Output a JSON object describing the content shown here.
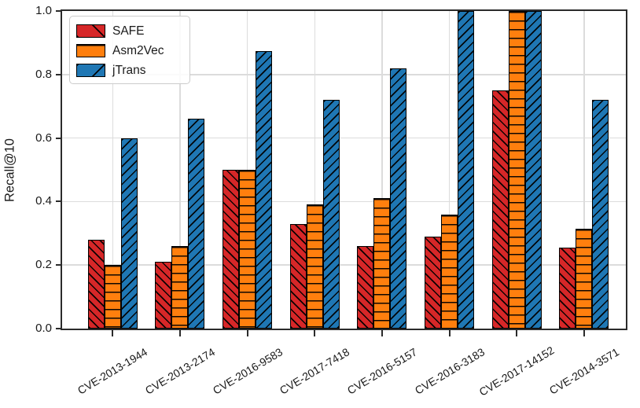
{
  "chart_data": {
    "type": "bar",
    "title": "",
    "xlabel": "",
    "ylabel": "Recall@10",
    "ylim": [
      0.0,
      1.0
    ],
    "yticks": [
      0.0,
      0.2,
      0.4,
      0.6,
      0.8,
      1.0
    ],
    "ytick_labels": [
      "0.0",
      "0.2",
      "0.4",
      "0.6",
      "0.8",
      "1.0"
    ],
    "grid": true,
    "legend_position": "upper left",
    "categories": [
      "CVE-2013-1944",
      "CVE-2013-2174",
      "CVE-2016-9583",
      "CVE-2017-7418",
      "CVE-2016-5157",
      "CVE-2016-3183",
      "CVE-2017-14152",
      "CVE-2014-3571"
    ],
    "series": [
      {
        "name": "SAFE",
        "color": "#d62728",
        "hatch": "\\",
        "values": [
          0.28,
          0.21,
          0.5,
          0.33,
          0.26,
          0.29,
          0.75,
          0.255
        ]
      },
      {
        "name": "Asm2Vec",
        "color": "#ff7f0e",
        "hatch": "-",
        "values": [
          0.2,
          0.26,
          0.5,
          0.39,
          0.41,
          0.36,
          1.0,
          0.315
        ]
      },
      {
        "name": "jTrans",
        "color": "#1f77b4",
        "hatch": "/",
        "values": [
          0.6,
          0.66,
          0.875,
          0.72,
          0.82,
          1.0,
          1.0,
          0.72
        ]
      }
    ]
  },
  "style_colors": {
    "spine": "#2b2b2b",
    "grid": "#dcdcdc",
    "bar_edge": "#000000",
    "text": "#1a1a1a",
    "legend_border": "#cccccc"
  }
}
